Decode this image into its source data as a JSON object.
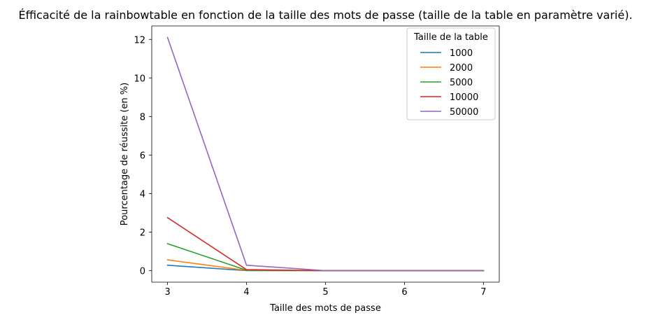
{
  "chart_data": {
    "type": "line",
    "title": "Éfficacité de la rainbowtable en fonction de la taille des mots de passe (taille de la table en paramètre varié).",
    "xlabel": "Taille des mots de passe",
    "ylabel": "Pourcentage de réussite (en %)",
    "x": [
      3,
      4,
      5,
      6,
      7
    ],
    "xticks": [
      "3",
      "4",
      "5",
      "6",
      "7"
    ],
    "yticks": [
      "0",
      "2",
      "4",
      "6",
      "8",
      "10",
      "12"
    ],
    "xlim": [
      2.8,
      7.2
    ],
    "ylim": [
      -0.6,
      12.7
    ],
    "grid": false,
    "legend": {
      "title": "Taille de la table",
      "placement": "top-right"
    },
    "series": [
      {
        "name": "1000",
        "color": "#1f77b4",
        "values": [
          0.28,
          0.0,
          0.0,
          0.0,
          0.0
        ]
      },
      {
        "name": "2000",
        "color": "#ff7f0e",
        "values": [
          0.56,
          0.01,
          0.0,
          0.0,
          0.0
        ]
      },
      {
        "name": "5000",
        "color": "#2ca02c",
        "values": [
          1.4,
          0.02,
          0.0,
          0.0,
          0.0
        ]
      },
      {
        "name": "10000",
        "color": "#d62728",
        "values": [
          2.75,
          0.05,
          0.0,
          0.0,
          0.0
        ]
      },
      {
        "name": "50000",
        "color": "#9467bd",
        "values": [
          12.1,
          0.28,
          0.0,
          0.0,
          0.0
        ]
      }
    ]
  }
}
